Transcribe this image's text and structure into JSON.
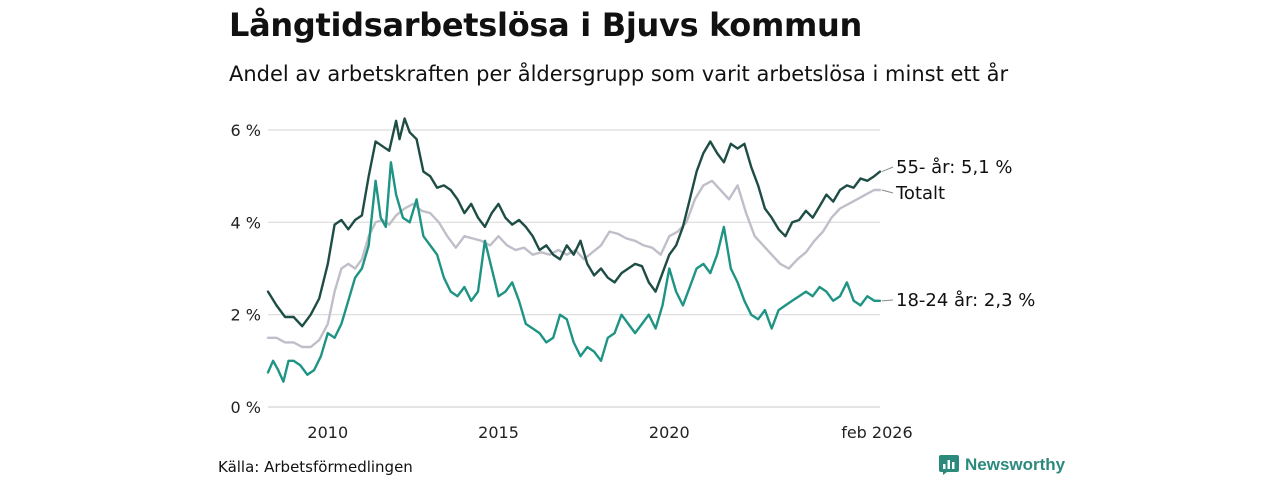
{
  "title": "Långtidsarbetslösa i Bjuvs kommun",
  "subtitle": "Andel av arbetskraften per åldersgrupp som varit arbetslösa i minst ett år",
  "source": "Källa: Arbetsförmedlingen",
  "brand": {
    "name": "Newsworthy",
    "icon": "newsworthy-logo-icon",
    "color": "#2b8a7c"
  },
  "chart_data": {
    "type": "line",
    "title": "Långtidsarbetslösa i Bjuvs kommun",
    "xlabel": "",
    "ylabel": "",
    "xlim": [
      2008.25,
      2026.17
    ],
    "ylim": [
      0,
      6
    ],
    "grid": true,
    "y_ticks": [
      0,
      2,
      4,
      6
    ],
    "y_tick_labels": [
      "0 %",
      "2 %",
      "4 %",
      "6 %"
    ],
    "x_ticks": [
      2010,
      2015,
      2020,
      2026.08
    ],
    "x_tick_labels": [
      "2010",
      "2015",
      "2020",
      "feb 2026"
    ],
    "series": [
      {
        "name": "55- år",
        "label": "55- år: 5,1 %",
        "color": "#1e4d45",
        "width": 2.4,
        "points": [
          [
            2008.25,
            2.5
          ],
          [
            2008.5,
            2.2
          ],
          [
            2008.75,
            1.95
          ],
          [
            2009.0,
            1.95
          ],
          [
            2009.25,
            1.75
          ],
          [
            2009.5,
            2.0
          ],
          [
            2009.75,
            2.35
          ],
          [
            2010.0,
            3.1
          ],
          [
            2010.2,
            3.95
          ],
          [
            2010.4,
            4.05
          ],
          [
            2010.6,
            3.85
          ],
          [
            2010.8,
            4.05
          ],
          [
            2011.0,
            4.15
          ],
          [
            2011.2,
            5.0
          ],
          [
            2011.4,
            5.75
          ],
          [
            2011.6,
            5.65
          ],
          [
            2011.8,
            5.55
          ],
          [
            2012.0,
            6.2
          ],
          [
            2012.1,
            5.8
          ],
          [
            2012.25,
            6.25
          ],
          [
            2012.4,
            5.95
          ],
          [
            2012.6,
            5.8
          ],
          [
            2012.8,
            5.1
          ],
          [
            2013.0,
            5.0
          ],
          [
            2013.2,
            4.75
          ],
          [
            2013.4,
            4.8
          ],
          [
            2013.6,
            4.7
          ],
          [
            2013.8,
            4.5
          ],
          [
            2014.0,
            4.2
          ],
          [
            2014.2,
            4.4
          ],
          [
            2014.4,
            4.1
          ],
          [
            2014.6,
            3.9
          ],
          [
            2014.8,
            4.2
          ],
          [
            2015.0,
            4.4
          ],
          [
            2015.2,
            4.1
          ],
          [
            2015.4,
            3.95
          ],
          [
            2015.6,
            4.05
          ],
          [
            2015.8,
            3.9
          ],
          [
            2016.0,
            3.7
          ],
          [
            2016.2,
            3.4
          ],
          [
            2016.4,
            3.5
          ],
          [
            2016.6,
            3.3
          ],
          [
            2016.8,
            3.2
          ],
          [
            2017.0,
            3.5
          ],
          [
            2017.2,
            3.3
          ],
          [
            2017.4,
            3.6
          ],
          [
            2017.6,
            3.1
          ],
          [
            2017.8,
            2.85
          ],
          [
            2018.0,
            3.0
          ],
          [
            2018.2,
            2.8
          ],
          [
            2018.4,
            2.7
          ],
          [
            2018.6,
            2.9
          ],
          [
            2018.8,
            3.0
          ],
          [
            2019.0,
            3.1
          ],
          [
            2019.2,
            3.05
          ],
          [
            2019.4,
            2.7
          ],
          [
            2019.6,
            2.5
          ],
          [
            2019.8,
            2.9
          ],
          [
            2020.0,
            3.3
          ],
          [
            2020.2,
            3.5
          ],
          [
            2020.4,
            3.9
          ],
          [
            2020.6,
            4.5
          ],
          [
            2020.8,
            5.1
          ],
          [
            2021.0,
            5.5
          ],
          [
            2021.2,
            5.75
          ],
          [
            2021.4,
            5.5
          ],
          [
            2021.6,
            5.3
          ],
          [
            2021.8,
            5.7
          ],
          [
            2022.0,
            5.6
          ],
          [
            2022.2,
            5.7
          ],
          [
            2022.4,
            5.2
          ],
          [
            2022.6,
            4.8
          ],
          [
            2022.8,
            4.3
          ],
          [
            2023.0,
            4.1
          ],
          [
            2023.2,
            3.85
          ],
          [
            2023.4,
            3.7
          ],
          [
            2023.6,
            4.0
          ],
          [
            2023.8,
            4.05
          ],
          [
            2024.0,
            4.25
          ],
          [
            2024.2,
            4.1
          ],
          [
            2024.4,
            4.35
          ],
          [
            2024.6,
            4.6
          ],
          [
            2024.8,
            4.45
          ],
          [
            2025.0,
            4.7
          ],
          [
            2025.2,
            4.8
          ],
          [
            2025.4,
            4.75
          ],
          [
            2025.6,
            4.95
          ],
          [
            2025.8,
            4.9
          ],
          [
            2026.0,
            5.0
          ],
          [
            2026.17,
            5.1
          ]
        ]
      },
      {
        "name": "Totalt",
        "label": "Totalt",
        "color": "#c0bec8",
        "width": 2.4,
        "points": [
          [
            2008.25,
            1.5
          ],
          [
            2008.5,
            1.5
          ],
          [
            2008.75,
            1.4
          ],
          [
            2009.0,
            1.4
          ],
          [
            2009.25,
            1.3
          ],
          [
            2009.5,
            1.3
          ],
          [
            2009.75,
            1.45
          ],
          [
            2010.0,
            1.8
          ],
          [
            2010.2,
            2.5
          ],
          [
            2010.4,
            3.0
          ],
          [
            2010.6,
            3.1
          ],
          [
            2010.8,
            3.0
          ],
          [
            2011.0,
            3.2
          ],
          [
            2011.2,
            3.7
          ],
          [
            2011.4,
            4.0
          ],
          [
            2011.6,
            4.05
          ],
          [
            2011.8,
            3.95
          ],
          [
            2012.0,
            4.15
          ],
          [
            2012.25,
            4.3
          ],
          [
            2012.5,
            4.4
          ],
          [
            2012.75,
            4.25
          ],
          [
            2013.0,
            4.2
          ],
          [
            2013.25,
            4.0
          ],
          [
            2013.5,
            3.7
          ],
          [
            2013.75,
            3.45
          ],
          [
            2014.0,
            3.7
          ],
          [
            2014.25,
            3.65
          ],
          [
            2014.5,
            3.6
          ],
          [
            2014.75,
            3.5
          ],
          [
            2015.0,
            3.7
          ],
          [
            2015.25,
            3.5
          ],
          [
            2015.5,
            3.4
          ],
          [
            2015.75,
            3.45
          ],
          [
            2016.0,
            3.3
          ],
          [
            2016.25,
            3.35
          ],
          [
            2016.5,
            3.3
          ],
          [
            2016.75,
            3.4
          ],
          [
            2017.0,
            3.3
          ],
          [
            2017.25,
            3.4
          ],
          [
            2017.5,
            3.2
          ],
          [
            2017.75,
            3.35
          ],
          [
            2018.0,
            3.5
          ],
          [
            2018.25,
            3.8
          ],
          [
            2018.5,
            3.75
          ],
          [
            2018.75,
            3.65
          ],
          [
            2019.0,
            3.6
          ],
          [
            2019.25,
            3.5
          ],
          [
            2019.5,
            3.45
          ],
          [
            2019.75,
            3.3
          ],
          [
            2020.0,
            3.7
          ],
          [
            2020.25,
            3.8
          ],
          [
            2020.5,
            4.0
          ],
          [
            2020.75,
            4.5
          ],
          [
            2021.0,
            4.8
          ],
          [
            2021.25,
            4.9
          ],
          [
            2021.5,
            4.7
          ],
          [
            2021.75,
            4.5
          ],
          [
            2022.0,
            4.8
          ],
          [
            2022.25,
            4.2
          ],
          [
            2022.5,
            3.7
          ],
          [
            2022.75,
            3.5
          ],
          [
            2023.0,
            3.3
          ],
          [
            2023.25,
            3.1
          ],
          [
            2023.5,
            3.0
          ],
          [
            2023.75,
            3.2
          ],
          [
            2024.0,
            3.35
          ],
          [
            2024.25,
            3.6
          ],
          [
            2024.5,
            3.8
          ],
          [
            2024.75,
            4.1
          ],
          [
            2025.0,
            4.3
          ],
          [
            2025.25,
            4.4
          ],
          [
            2025.5,
            4.5
          ],
          [
            2025.75,
            4.6
          ],
          [
            2026.0,
            4.7
          ],
          [
            2026.17,
            4.7
          ]
        ]
      },
      {
        "name": "18-24 år",
        "label": "18-24 år: 2,3 %",
        "color": "#1f9484",
        "width": 2.4,
        "points": [
          [
            2008.25,
            0.75
          ],
          [
            2008.4,
            1.0
          ],
          [
            2008.55,
            0.8
          ],
          [
            2008.7,
            0.55
          ],
          [
            2008.85,
            1.0
          ],
          [
            2009.0,
            1.0
          ],
          [
            2009.2,
            0.9
          ],
          [
            2009.4,
            0.7
          ],
          [
            2009.6,
            0.8
          ],
          [
            2009.8,
            1.1
          ],
          [
            2010.0,
            1.6
          ],
          [
            2010.2,
            1.5
          ],
          [
            2010.4,
            1.8
          ],
          [
            2010.6,
            2.3
          ],
          [
            2010.8,
            2.8
          ],
          [
            2011.0,
            3.0
          ],
          [
            2011.2,
            3.5
          ],
          [
            2011.4,
            4.9
          ],
          [
            2011.55,
            4.1
          ],
          [
            2011.7,
            3.9
          ],
          [
            2011.85,
            5.3
          ],
          [
            2012.0,
            4.6
          ],
          [
            2012.2,
            4.1
          ],
          [
            2012.4,
            4.0
          ],
          [
            2012.6,
            4.5
          ],
          [
            2012.8,
            3.7
          ],
          [
            2013.0,
            3.5
          ],
          [
            2013.2,
            3.3
          ],
          [
            2013.4,
            2.8
          ],
          [
            2013.6,
            2.5
          ],
          [
            2013.8,
            2.4
          ],
          [
            2014.0,
            2.6
          ],
          [
            2014.2,
            2.3
          ],
          [
            2014.4,
            2.5
          ],
          [
            2014.6,
            3.6
          ],
          [
            2014.8,
            3.0
          ],
          [
            2015.0,
            2.4
          ],
          [
            2015.2,
            2.5
          ],
          [
            2015.4,
            2.7
          ],
          [
            2015.6,
            2.3
          ],
          [
            2015.8,
            1.8
          ],
          [
            2016.0,
            1.7
          ],
          [
            2016.2,
            1.6
          ],
          [
            2016.4,
            1.4
          ],
          [
            2016.6,
            1.5
          ],
          [
            2016.8,
            2.0
          ],
          [
            2017.0,
            1.9
          ],
          [
            2017.2,
            1.4
          ],
          [
            2017.4,
            1.1
          ],
          [
            2017.6,
            1.3
          ],
          [
            2017.8,
            1.2
          ],
          [
            2018.0,
            1.0
          ],
          [
            2018.2,
            1.5
          ],
          [
            2018.4,
            1.6
          ],
          [
            2018.6,
            2.0
          ],
          [
            2018.8,
            1.8
          ],
          [
            2019.0,
            1.6
          ],
          [
            2019.2,
            1.8
          ],
          [
            2019.4,
            2.0
          ],
          [
            2019.6,
            1.7
          ],
          [
            2019.8,
            2.2
          ],
          [
            2020.0,
            3.0
          ],
          [
            2020.2,
            2.5
          ],
          [
            2020.4,
            2.2
          ],
          [
            2020.6,
            2.6
          ],
          [
            2020.8,
            3.0
          ],
          [
            2021.0,
            3.1
          ],
          [
            2021.2,
            2.9
          ],
          [
            2021.4,
            3.3
          ],
          [
            2021.6,
            3.9
          ],
          [
            2021.8,
            3.0
          ],
          [
            2022.0,
            2.7
          ],
          [
            2022.2,
            2.3
          ],
          [
            2022.4,
            2.0
          ],
          [
            2022.6,
            1.9
          ],
          [
            2022.8,
            2.1
          ],
          [
            2023.0,
            1.7
          ],
          [
            2023.2,
            2.1
          ],
          [
            2023.4,
            2.2
          ],
          [
            2023.6,
            2.3
          ],
          [
            2023.8,
            2.4
          ],
          [
            2024.0,
            2.5
          ],
          [
            2024.2,
            2.4
          ],
          [
            2024.4,
            2.6
          ],
          [
            2024.6,
            2.5
          ],
          [
            2024.8,
            2.3
          ],
          [
            2025.0,
            2.4
          ],
          [
            2025.2,
            2.7
          ],
          [
            2025.4,
            2.3
          ],
          [
            2025.6,
            2.2
          ],
          [
            2025.8,
            2.4
          ],
          [
            2026.0,
            2.3
          ],
          [
            2026.17,
            2.3
          ]
        ]
      }
    ]
  }
}
